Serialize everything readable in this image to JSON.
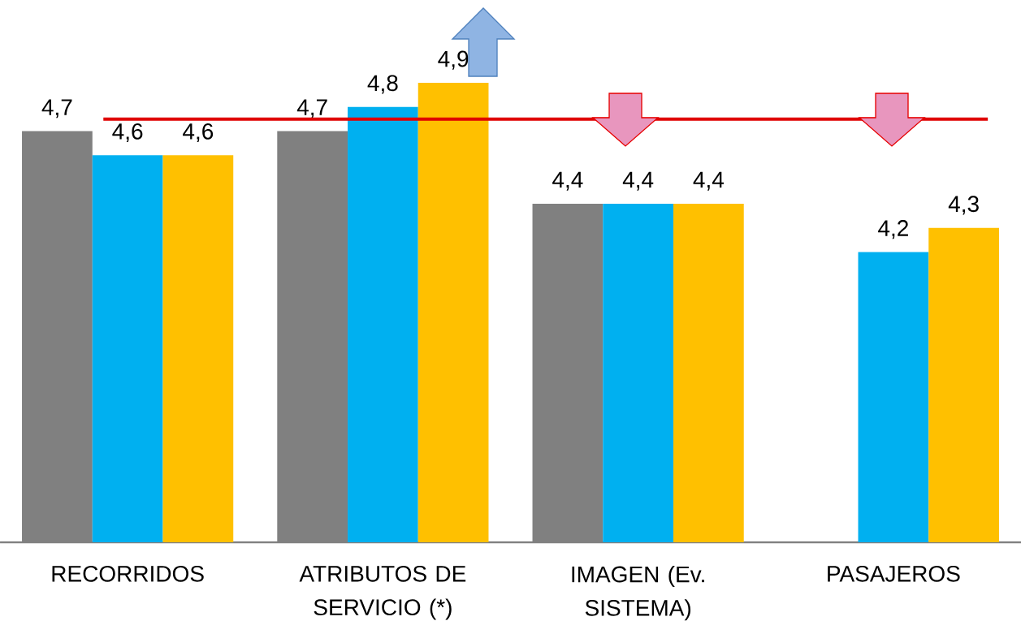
{
  "chart_data": {
    "type": "bar",
    "categories": [
      "RECORRIDOS",
      "ATRIBUTOS DE SERVICIO (*)",
      "IMAGEN (Ev. SISTEMA)",
      "PASAJEROS"
    ],
    "series": [
      {
        "color": "#808080",
        "values": [
          4.7,
          4.7,
          4.4,
          null
        ],
        "value_labels": [
          "4,7",
          "4,7",
          "4,4",
          null
        ]
      },
      {
        "color": "#00b0f0",
        "values": [
          4.6,
          4.8,
          4.4,
          4.2
        ],
        "value_labels": [
          "4,6",
          "4,8",
          "4,4",
          "4,2"
        ]
      },
      {
        "color": "#ffc000",
        "values": [
          4.6,
          4.9,
          4.4,
          4.3
        ],
        "value_labels": [
          "4,6",
          "4,9",
          "4,4",
          "4,3"
        ]
      }
    ],
    "ylim": [
      3,
      4.9
    ],
    "tick_labels": "x",
    "grid": false,
    "ref_lines": [
      {
        "axis": "y",
        "value": 4.75,
        "color": "#e00000"
      }
    ]
  }
}
